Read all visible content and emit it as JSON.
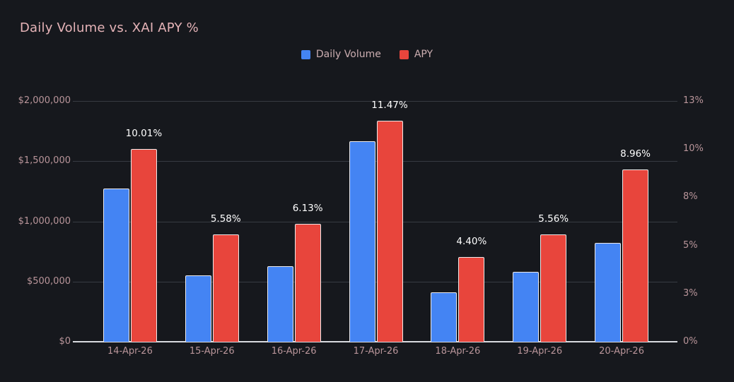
{
  "title": "Daily Volume vs. XAI APY %",
  "legend": {
    "items": [
      {
        "label": "Daily Volume",
        "color": "#4484f3"
      },
      {
        "label": "APY",
        "color": "#e8453c"
      }
    ]
  },
  "colors": {
    "background": "#16181d",
    "title_text": "#e5b3b7",
    "legend_text": "#ccaeb1",
    "axis_text": "#b9959a",
    "gridline": "#373b42",
    "baseline": "#d9dbe0",
    "volume_bar": "#4484f3",
    "apy_bar": "#e8453c",
    "bar_border": "#ece9e9",
    "data_label_text": "#ffffff"
  },
  "chart_data": {
    "type": "bar",
    "title": "Daily Volume vs. XAI APY %",
    "grid": true,
    "legend_position": "top-center",
    "categories": [
      "14-Apr-26",
      "15-Apr-26",
      "16-Apr-26",
      "17-Apr-26",
      "18-Apr-26",
      "19-Apr-26",
      "20-Apr-26"
    ],
    "series": [
      {
        "name": "Daily Volume",
        "axis": "left",
        "color": "#4484f3",
        "values": [
          1270000,
          550000,
          630000,
          1665000,
          410000,
          580000,
          820000
        ]
      },
      {
        "name": "APY",
        "axis": "right",
        "color": "#e8453c",
        "values": [
          10.01,
          5.58,
          6.13,
          11.47,
          4.4,
          5.56,
          8.96
        ],
        "data_labels": [
          "10.01%",
          "5.58%",
          "6.13%",
          "11.47%",
          "4.40%",
          "5.56%",
          "8.96%"
        ]
      }
    ],
    "left_axis": {
      "min": 0,
      "max": 2000000,
      "tick_values": [
        0,
        500000,
        1000000,
        1500000,
        2000000
      ],
      "tick_labels": [
        "$0",
        "$500,000",
        "$1,000,000",
        "$1,500,000",
        "$2,000,000"
      ]
    },
    "right_axis": {
      "min": 0,
      "max": 12.5,
      "tick_values": [
        0,
        2.5,
        5,
        7.5,
        10,
        12.5
      ],
      "tick_labels": [
        "0%",
        "3%",
        "5%",
        "8%",
        "10%",
        "13%"
      ]
    }
  }
}
